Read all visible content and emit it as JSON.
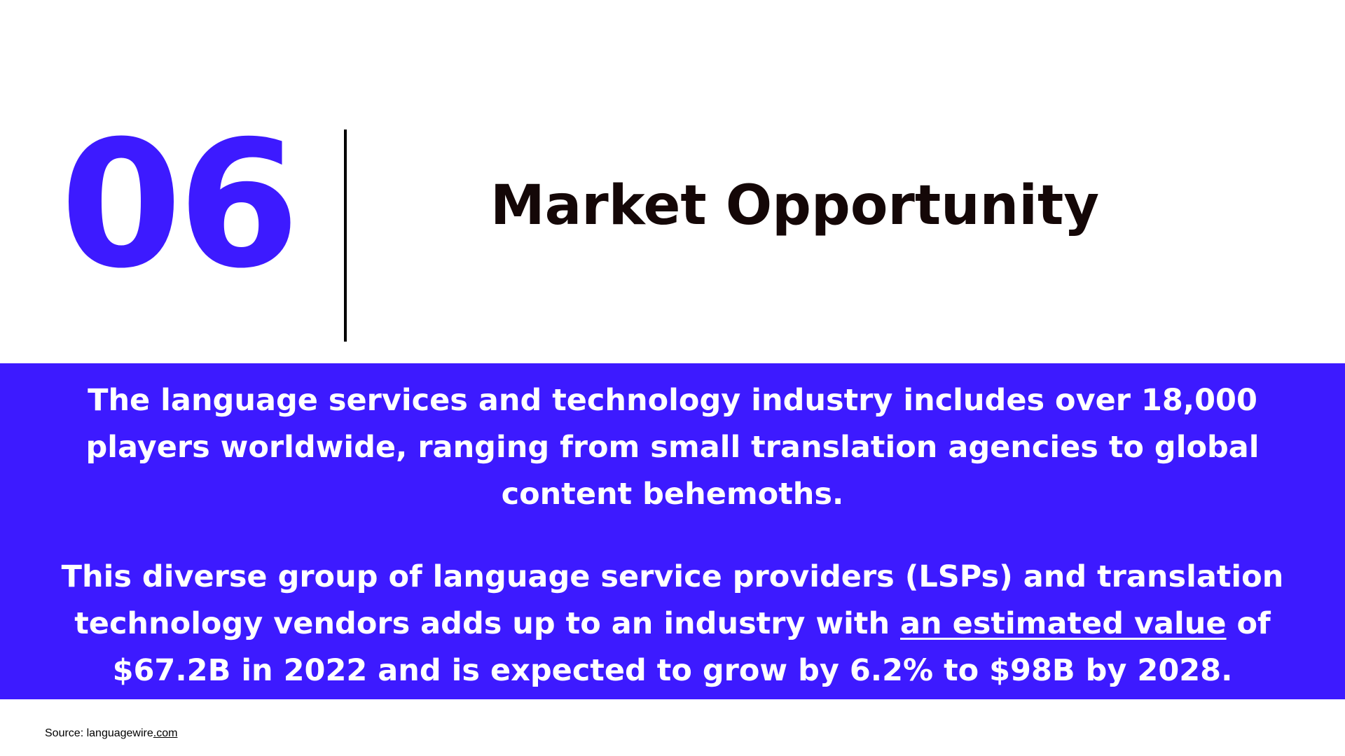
{
  "header": {
    "number": "06",
    "title": "Market Opportunity"
  },
  "band": {
    "paragraph1": "The language services and technology industry includes over 18,000 players worldwide, ranging from small translation agencies to global content behemoths.",
    "paragraph2_before": "This diverse group of language service providers (LSPs) and translation technology vendors adds up to an industry with ",
    "paragraph2_link": "an estimated value",
    "paragraph2_after": " of $67.2B in 2022 and is expected to grow by 6.2% to $98B by 2028."
  },
  "footer": {
    "source_prefix": "Source: languagewire",
    "source_link": ".com"
  },
  "colors": {
    "accent": "#3d1aff",
    "title": "#140707",
    "band_text": "#ffffff"
  }
}
